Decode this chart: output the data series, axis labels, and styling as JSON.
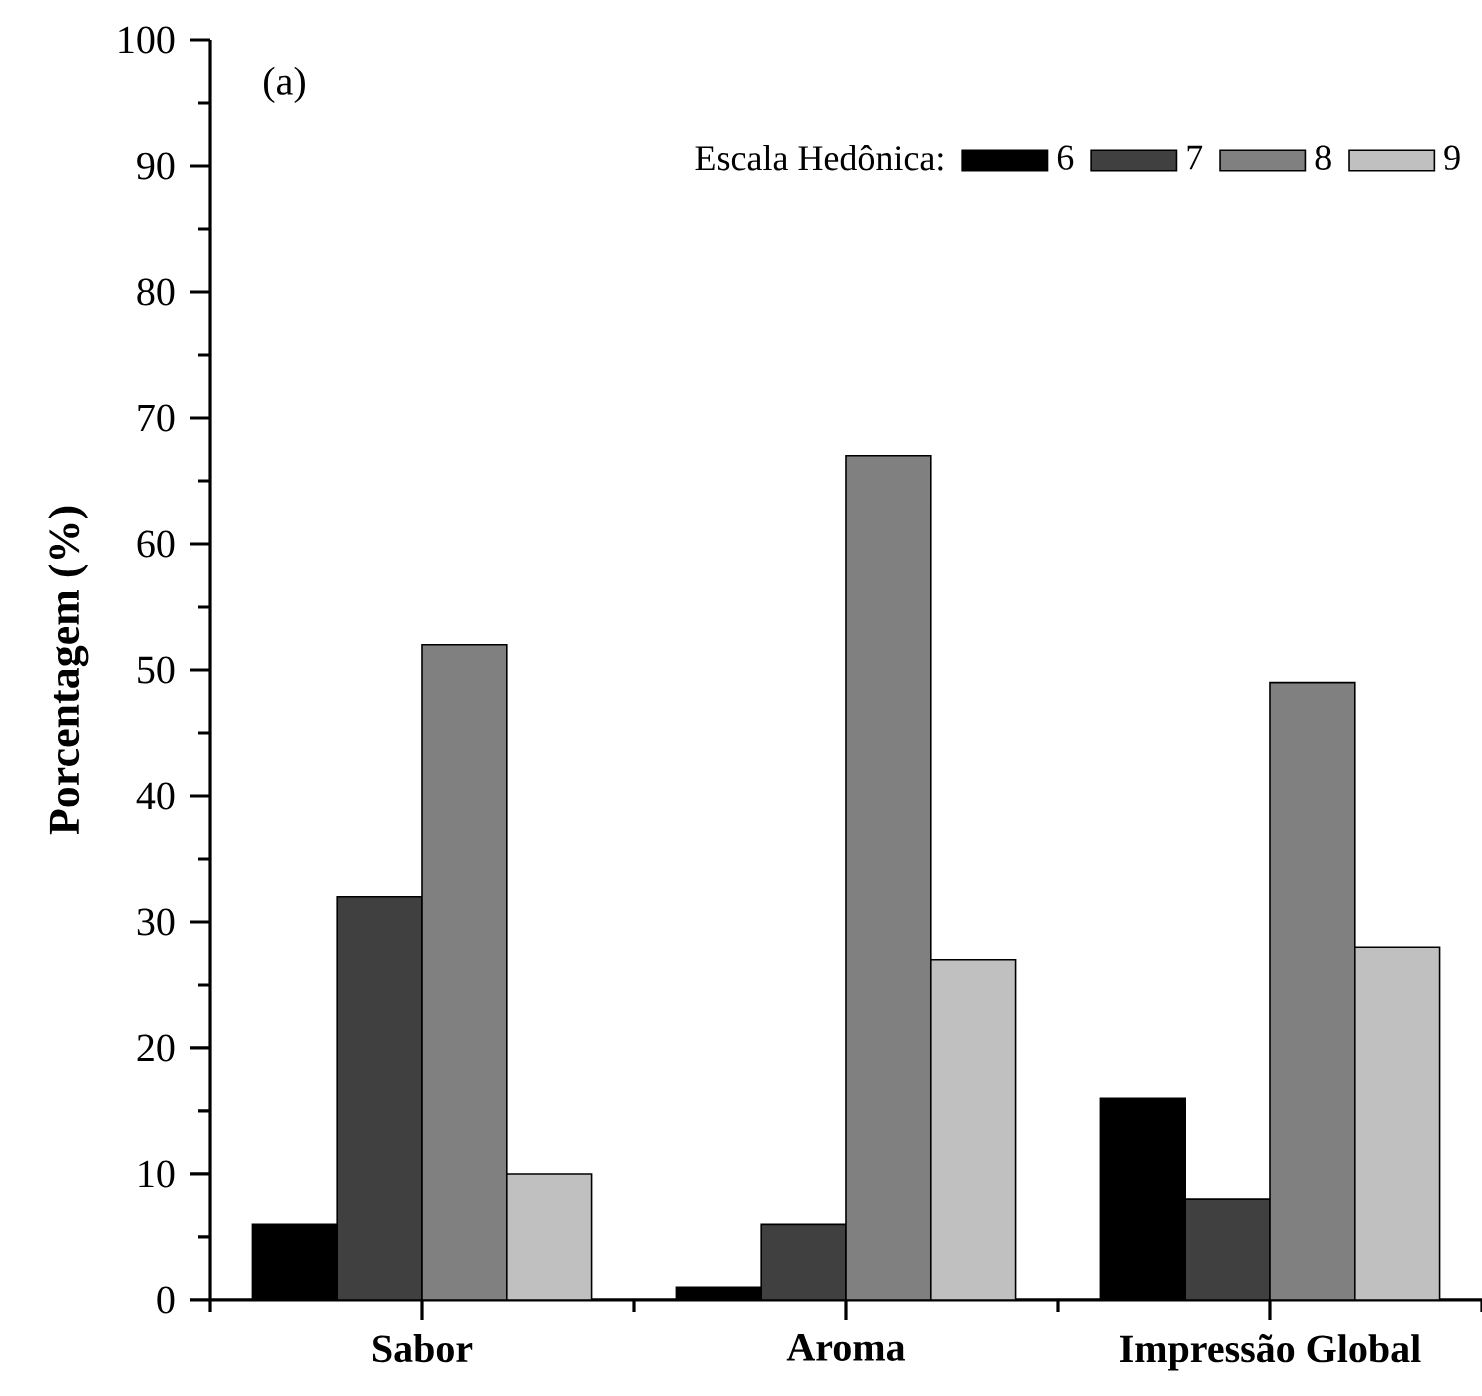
{
  "chart_data": {
    "type": "bar",
    "ylabel": "Porcentagem (%)",
    "legend_title": "Escala Hedônica:",
    "annotations": [
      "(a)"
    ],
    "categories": [
      "Sabor",
      "Aroma",
      "Impressão Global"
    ],
    "series": [
      {
        "name": "6",
        "color": "#000000",
        "values": [
          6,
          1,
          16
        ]
      },
      {
        "name": "7",
        "color": "#404040",
        "values": [
          32,
          6,
          8
        ]
      },
      {
        "name": "8",
        "color": "#808080",
        "values": [
          52,
          67,
          49
        ]
      },
      {
        "name": "9",
        "color": "#c0c0c0",
        "values": [
          10,
          27,
          28
        ]
      }
    ],
    "ylim": [
      0,
      100
    ],
    "yticks": [
      0,
      10,
      20,
      30,
      40,
      50,
      60,
      70,
      80,
      90,
      100
    ],
    "legend": "top right"
  }
}
